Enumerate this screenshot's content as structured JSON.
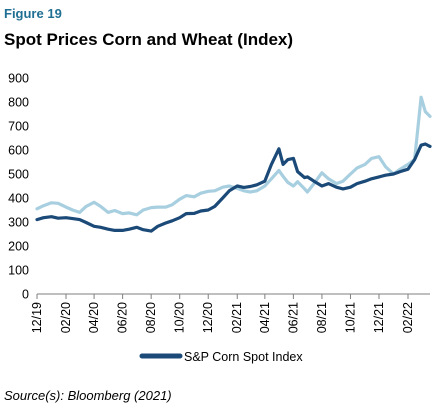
{
  "figure_label": "Figure 19",
  "title": "Spot Prices Corn and Wheat (Index)",
  "source": "Source(s): Bloomberg (2021)",
  "colors": {
    "corn": "#1b4a78",
    "wheat": "#a8cfe0",
    "axis": "#7f7f7f",
    "figure_label": "#1f6f93"
  },
  "chart_data": {
    "type": "line",
    "title": "Spot Prices Corn and Wheat (Index)",
    "ylim": [
      0,
      900
    ],
    "yticks": [
      0,
      100,
      200,
      300,
      400,
      500,
      600,
      700,
      800,
      900
    ],
    "ytick_labels": [
      "0",
      "100",
      "200",
      "300",
      "400",
      "500",
      "600",
      "700",
      "800",
      "900"
    ],
    "xlim": [
      "2019-12-01",
      "2022-03-20"
    ],
    "xticks": [
      "2019-12-01",
      "2020-02-01",
      "2020-04-01",
      "2020-06-01",
      "2020-08-01",
      "2020-10-01",
      "2020-12-01",
      "2021-02-01",
      "2021-04-01",
      "2021-06-01",
      "2021-08-01",
      "2021-10-01",
      "2021-12-01",
      "2022-02-01"
    ],
    "xtick_labels": [
      "12/19",
      "02/20",
      "04/20",
      "06/20",
      "08/20",
      "10/20",
      "12/20",
      "02/21",
      "04/21",
      "06/21",
      "08/21",
      "10/21",
      "12/21",
      "02/22"
    ],
    "legend": {
      "position": "bottom",
      "entries": [
        "S&P Corn Spot Index"
      ]
    },
    "series": [
      {
        "name": "S&P Corn Spot Index",
        "color": "#1b4a78",
        "points": [
          [
            "2019-12-01",
            310
          ],
          [
            "2019-12-15",
            318
          ],
          [
            "2020-01-01",
            322
          ],
          [
            "2020-01-15",
            316
          ],
          [
            "2020-02-01",
            318
          ],
          [
            "2020-02-15",
            314
          ],
          [
            "2020-03-01",
            310
          ],
          [
            "2020-03-15",
            298
          ],
          [
            "2020-04-01",
            282
          ],
          [
            "2020-04-15",
            278
          ],
          [
            "2020-05-01",
            270
          ],
          [
            "2020-05-15",
            265
          ],
          [
            "2020-06-01",
            265
          ],
          [
            "2020-06-15",
            270
          ],
          [
            "2020-07-01",
            278
          ],
          [
            "2020-07-15",
            268
          ],
          [
            "2020-08-01",
            262
          ],
          [
            "2020-08-15",
            282
          ],
          [
            "2020-09-01",
            296
          ],
          [
            "2020-09-15",
            305
          ],
          [
            "2020-10-01",
            318
          ],
          [
            "2020-10-15",
            335
          ],
          [
            "2020-11-01",
            336
          ],
          [
            "2020-11-15",
            346
          ],
          [
            "2020-12-01",
            350
          ],
          [
            "2020-12-15",
            365
          ],
          [
            "2021-01-01",
            400
          ],
          [
            "2021-01-15",
            430
          ],
          [
            "2021-02-01",
            450
          ],
          [
            "2021-02-15",
            444
          ],
          [
            "2021-03-01",
            448
          ],
          [
            "2021-03-15",
            455
          ],
          [
            "2021-04-01",
            470
          ],
          [
            "2021-04-15",
            540
          ],
          [
            "2021-05-01",
            605
          ],
          [
            "2021-05-10",
            540
          ],
          [
            "2021-05-20",
            560
          ],
          [
            "2021-06-01",
            565
          ],
          [
            "2021-06-10",
            510
          ],
          [
            "2021-06-25",
            485
          ],
          [
            "2021-07-01",
            488
          ],
          [
            "2021-07-15",
            470
          ],
          [
            "2021-08-01",
            450
          ],
          [
            "2021-08-15",
            460
          ],
          [
            "2021-09-01",
            445
          ],
          [
            "2021-09-15",
            438
          ],
          [
            "2021-10-01",
            445
          ],
          [
            "2021-10-15",
            460
          ],
          [
            "2021-11-01",
            470
          ],
          [
            "2021-11-15",
            480
          ],
          [
            "2021-12-01",
            488
          ],
          [
            "2021-12-15",
            495
          ],
          [
            "2022-01-01",
            500
          ],
          [
            "2022-01-15",
            510
          ],
          [
            "2022-02-01",
            520
          ],
          [
            "2022-02-15",
            560
          ],
          [
            "2022-03-01",
            620
          ],
          [
            "2022-03-10",
            625
          ],
          [
            "2022-03-20",
            615
          ]
        ]
      },
      {
        "name": "",
        "color": "#a8cfe0",
        "points": [
          [
            "2019-12-01",
            355
          ],
          [
            "2019-12-15",
            368
          ],
          [
            "2020-01-01",
            380
          ],
          [
            "2020-01-15",
            378
          ],
          [
            "2020-02-01",
            362
          ],
          [
            "2020-02-15",
            350
          ],
          [
            "2020-03-01",
            340
          ],
          [
            "2020-03-15",
            365
          ],
          [
            "2020-04-01",
            382
          ],
          [
            "2020-04-15",
            365
          ],
          [
            "2020-05-01",
            340
          ],
          [
            "2020-05-15",
            348
          ],
          [
            "2020-06-01",
            335
          ],
          [
            "2020-06-15",
            338
          ],
          [
            "2020-07-01",
            330
          ],
          [
            "2020-07-15",
            350
          ],
          [
            "2020-08-01",
            360
          ],
          [
            "2020-08-15",
            362
          ],
          [
            "2020-09-01",
            362
          ],
          [
            "2020-09-15",
            372
          ],
          [
            "2020-10-01",
            395
          ],
          [
            "2020-10-15",
            410
          ],
          [
            "2020-11-01",
            405
          ],
          [
            "2020-11-15",
            420
          ],
          [
            "2020-12-01",
            428
          ],
          [
            "2020-12-15",
            430
          ],
          [
            "2021-01-01",
            445
          ],
          [
            "2021-01-15",
            450
          ],
          [
            "2021-02-01",
            440
          ],
          [
            "2021-02-15",
            430
          ],
          [
            "2021-03-01",
            425
          ],
          [
            "2021-03-15",
            430
          ],
          [
            "2021-04-01",
            450
          ],
          [
            "2021-04-15",
            480
          ],
          [
            "2021-05-01",
            515
          ],
          [
            "2021-05-10",
            490
          ],
          [
            "2021-05-20",
            465
          ],
          [
            "2021-06-01",
            450
          ],
          [
            "2021-06-10",
            468
          ],
          [
            "2021-06-25",
            438
          ],
          [
            "2021-07-01",
            425
          ],
          [
            "2021-07-15",
            460
          ],
          [
            "2021-08-01",
            505
          ],
          [
            "2021-08-15",
            480
          ],
          [
            "2021-09-01",
            460
          ],
          [
            "2021-09-15",
            470
          ],
          [
            "2021-10-01",
            500
          ],
          [
            "2021-10-15",
            525
          ],
          [
            "2021-11-01",
            540
          ],
          [
            "2021-11-15",
            565
          ],
          [
            "2021-12-01",
            572
          ],
          [
            "2021-12-15",
            530
          ],
          [
            "2022-01-01",
            500
          ],
          [
            "2022-01-15",
            520
          ],
          [
            "2022-02-01",
            540
          ],
          [
            "2022-02-15",
            560
          ],
          [
            "2022-03-01",
            820
          ],
          [
            "2022-03-10",
            760
          ],
          [
            "2022-03-20",
            740
          ]
        ]
      }
    ]
  }
}
